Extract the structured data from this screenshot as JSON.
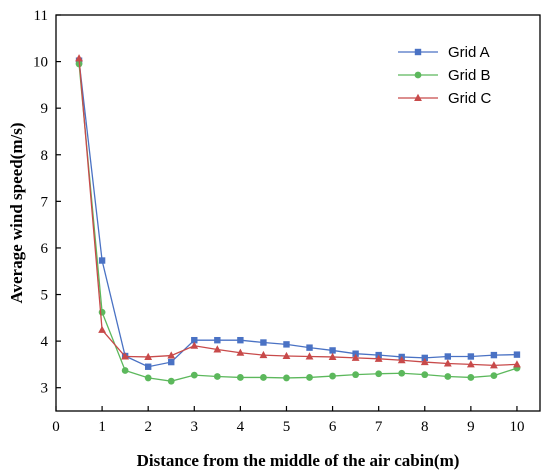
{
  "chart_data": {
    "type": "line",
    "title": "",
    "xlabel": "Distance from the middle of the air cabin(m)",
    "ylabel": "Average wind speed(m/s)",
    "xlim": [
      0,
      10.5
    ],
    "ylim": [
      2.5,
      11
    ],
    "xticks": [
      0,
      1,
      2,
      3,
      4,
      5,
      6,
      7,
      8,
      9,
      10
    ],
    "yticks": [
      3,
      4,
      5,
      6,
      7,
      8,
      9,
      10,
      11
    ],
    "x": [
      0.5,
      1,
      1.5,
      2,
      2.5,
      3,
      3.5,
      4,
      4.5,
      5,
      5.5,
      6,
      6.5,
      7,
      7.5,
      8,
      8.5,
      9,
      9.5,
      10
    ],
    "grid": false,
    "legend_position": "top-right",
    "series": [
      {
        "name": "Grid A",
        "color": "#4a72c4",
        "marker": "square",
        "values": [
          10.02,
          5.73,
          3.68,
          3.45,
          3.55,
          4.02,
          4.02,
          4.02,
          3.97,
          3.93,
          3.86,
          3.8,
          3.73,
          3.7,
          3.66,
          3.64,
          3.67,
          3.67,
          3.7,
          3.71
        ]
      },
      {
        "name": "Grid B",
        "color": "#5cb85c",
        "marker": "circle",
        "values": [
          9.95,
          4.62,
          3.37,
          3.21,
          3.14,
          3.27,
          3.24,
          3.22,
          3.22,
          3.21,
          3.22,
          3.25,
          3.28,
          3.3,
          3.31,
          3.28,
          3.24,
          3.22,
          3.26,
          3.42
        ]
      },
      {
        "name": "Grid C",
        "color": "#c84a4a",
        "marker": "triangle",
        "values": [
          10.07,
          4.24,
          3.67,
          3.66,
          3.69,
          3.9,
          3.82,
          3.75,
          3.7,
          3.68,
          3.67,
          3.66,
          3.64,
          3.62,
          3.59,
          3.55,
          3.52,
          3.5,
          3.48,
          3.5
        ]
      }
    ]
  }
}
